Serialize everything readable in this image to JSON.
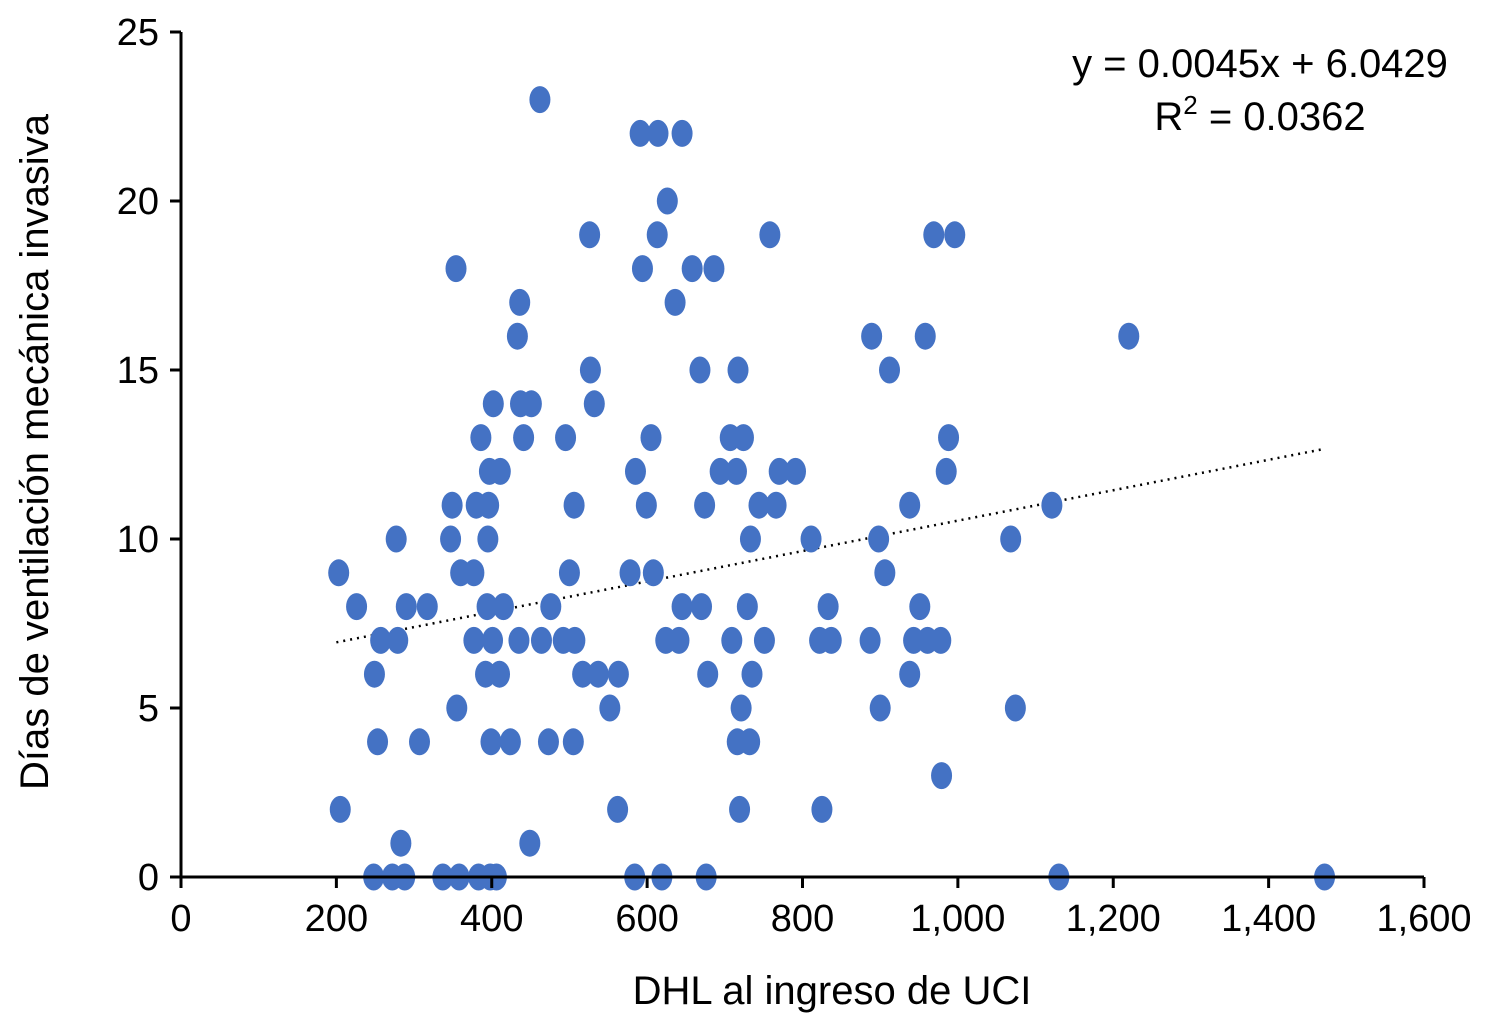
{
  "chart_data": {
    "type": "scatter",
    "xlabel": "DHL al ingreso de UCI",
    "ylabel": "Días de ventilación mecánica invasiva",
    "xlim": [
      0,
      1600
    ],
    "ylim": [
      0,
      25
    ],
    "x_ticks": [
      0,
      200,
      400,
      600,
      800,
      1000,
      1200,
      1400,
      1600
    ],
    "x_tick_labels": [
      "0",
      "200",
      "400",
      "600",
      "800",
      "1,000",
      "1,200",
      "1,400",
      "1,600"
    ],
    "y_ticks": [
      0,
      5,
      10,
      15,
      20,
      25
    ],
    "y_tick_labels": [
      "0",
      "5",
      "10",
      "15",
      "20",
      "25"
    ],
    "grid": false,
    "marker_color": "#4472C4",
    "trendline": {
      "slope": 0.0045,
      "intercept": 6.0429,
      "x_range": [
        200,
        1470
      ],
      "style": "dotted"
    },
    "annotation": {
      "equation": "y = 0.0045x + 6.0429",
      "r2_prefix": "R",
      "r2_exponent": "2",
      "r2_value": " = 0.0362"
    },
    "points": [
      {
        "x": 203,
        "y": 9
      },
      {
        "x": 205,
        "y": 2
      },
      {
        "x": 226,
        "y": 8
      },
      {
        "x": 248,
        "y": 0
      },
      {
        "x": 249,
        "y": 6
      },
      {
        "x": 253,
        "y": 4
      },
      {
        "x": 257,
        "y": 7
      },
      {
        "x": 272,
        "y": 0
      },
      {
        "x": 277,
        "y": 10
      },
      {
        "x": 279,
        "y": 7
      },
      {
        "x": 283,
        "y": 1
      },
      {
        "x": 288,
        "y": 0
      },
      {
        "x": 290,
        "y": 8
      },
      {
        "x": 307,
        "y": 4
      },
      {
        "x": 317,
        "y": 8
      },
      {
        "x": 337,
        "y": 0
      },
      {
        "x": 347,
        "y": 10
      },
      {
        "x": 349,
        "y": 11
      },
      {
        "x": 354,
        "y": 18
      },
      {
        "x": 355,
        "y": 5
      },
      {
        "x": 358,
        "y": 0
      },
      {
        "x": 360,
        "y": 9
      },
      {
        "x": 377,
        "y": 9
      },
      {
        "x": 377,
        "y": 7
      },
      {
        "x": 380,
        "y": 11
      },
      {
        "x": 383,
        "y": 0
      },
      {
        "x": 386,
        "y": 13
      },
      {
        "x": 392,
        "y": 6
      },
      {
        "x": 394,
        "y": 8
      },
      {
        "x": 395,
        "y": 10
      },
      {
        "x": 396,
        "y": 11
      },
      {
        "x": 397,
        "y": 12
      },
      {
        "x": 398,
        "y": 0
      },
      {
        "x": 399,
        "y": 4
      },
      {
        "x": 401,
        "y": 7
      },
      {
        "x": 402,
        "y": 14
      },
      {
        "x": 406,
        "y": 0
      },
      {
        "x": 410,
        "y": 6
      },
      {
        "x": 411,
        "y": 12
      },
      {
        "x": 415,
        "y": 8
      },
      {
        "x": 424,
        "y": 4
      },
      {
        "x": 433,
        "y": 16
      },
      {
        "x": 435,
        "y": 7
      },
      {
        "x": 436,
        "y": 17
      },
      {
        "x": 437,
        "y": 14
      },
      {
        "x": 441,
        "y": 13
      },
      {
        "x": 449,
        "y": 1
      },
      {
        "x": 451,
        "y": 14
      },
      {
        "x": 462,
        "y": 23
      },
      {
        "x": 464,
        "y": 7
      },
      {
        "x": 473,
        "y": 4
      },
      {
        "x": 476,
        "y": 8
      },
      {
        "x": 492,
        "y": 7
      },
      {
        "x": 495,
        "y": 13
      },
      {
        "x": 500,
        "y": 9
      },
      {
        "x": 505,
        "y": 4
      },
      {
        "x": 506,
        "y": 11
      },
      {
        "x": 507,
        "y": 7
      },
      {
        "x": 517,
        "y": 6
      },
      {
        "x": 526,
        "y": 19
      },
      {
        "x": 527,
        "y": 15
      },
      {
        "x": 532,
        "y": 14
      },
      {
        "x": 537,
        "y": 6
      },
      {
        "x": 552,
        "y": 5
      },
      {
        "x": 562,
        "y": 2
      },
      {
        "x": 563,
        "y": 6
      },
      {
        "x": 578,
        "y": 9
      },
      {
        "x": 584,
        "y": 0
      },
      {
        "x": 585,
        "y": 12
      },
      {
        "x": 591,
        "y": 22
      },
      {
        "x": 594,
        "y": 18
      },
      {
        "x": 599,
        "y": 11
      },
      {
        "x": 605,
        "y": 13
      },
      {
        "x": 608,
        "y": 9
      },
      {
        "x": 613,
        "y": 19
      },
      {
        "x": 614,
        "y": 22
      },
      {
        "x": 619,
        "y": 0
      },
      {
        "x": 624,
        "y": 7
      },
      {
        "x": 626,
        "y": 20
      },
      {
        "x": 636,
        "y": 17
      },
      {
        "x": 641,
        "y": 7
      },
      {
        "x": 645,
        "y": 8
      },
      {
        "x": 645,
        "y": 22
      },
      {
        "x": 658,
        "y": 18
      },
      {
        "x": 668,
        "y": 15
      },
      {
        "x": 670,
        "y": 8
      },
      {
        "x": 674,
        "y": 11
      },
      {
        "x": 676,
        "y": 0
      },
      {
        "x": 678,
        "y": 6
      },
      {
        "x": 686,
        "y": 18
      },
      {
        "x": 694,
        "y": 12
      },
      {
        "x": 707,
        "y": 13
      },
      {
        "x": 709,
        "y": 7
      },
      {
        "x": 715,
        "y": 12
      },
      {
        "x": 716,
        "y": 4
      },
      {
        "x": 717,
        "y": 15
      },
      {
        "x": 719,
        "y": 2
      },
      {
        "x": 721,
        "y": 5
      },
      {
        "x": 724,
        "y": 13
      },
      {
        "x": 729,
        "y": 8
      },
      {
        "x": 732,
        "y": 4
      },
      {
        "x": 733,
        "y": 10
      },
      {
        "x": 735,
        "y": 6
      },
      {
        "x": 744,
        "y": 11
      },
      {
        "x": 751,
        "y": 7
      },
      {
        "x": 758,
        "y": 19
      },
      {
        "x": 766,
        "y": 11
      },
      {
        "x": 770,
        "y": 12
      },
      {
        "x": 791,
        "y": 12
      },
      {
        "x": 811,
        "y": 10
      },
      {
        "x": 822,
        "y": 7
      },
      {
        "x": 825,
        "y": 2
      },
      {
        "x": 833,
        "y": 8
      },
      {
        "x": 837,
        "y": 7
      },
      {
        "x": 887,
        "y": 7
      },
      {
        "x": 889,
        "y": 16
      },
      {
        "x": 898,
        "y": 10
      },
      {
        "x": 900,
        "y": 5
      },
      {
        "x": 906,
        "y": 9
      },
      {
        "x": 912,
        "y": 15
      },
      {
        "x": 938,
        "y": 11
      },
      {
        "x": 938,
        "y": 6
      },
      {
        "x": 943,
        "y": 7
      },
      {
        "x": 951,
        "y": 8
      },
      {
        "x": 958,
        "y": 16
      },
      {
        "x": 961,
        "y": 7
      },
      {
        "x": 969,
        "y": 19
      },
      {
        "x": 978,
        "y": 7
      },
      {
        "x": 979,
        "y": 3
      },
      {
        "x": 985,
        "y": 12
      },
      {
        "x": 988,
        "y": 13
      },
      {
        "x": 996,
        "y": 19
      },
      {
        "x": 1068,
        "y": 10
      },
      {
        "x": 1074,
        "y": 5
      },
      {
        "x": 1121,
        "y": 11
      },
      {
        "x": 1130,
        "y": 0
      },
      {
        "x": 1220,
        "y": 16
      },
      {
        "x": 1472,
        "y": 0
      }
    ]
  }
}
